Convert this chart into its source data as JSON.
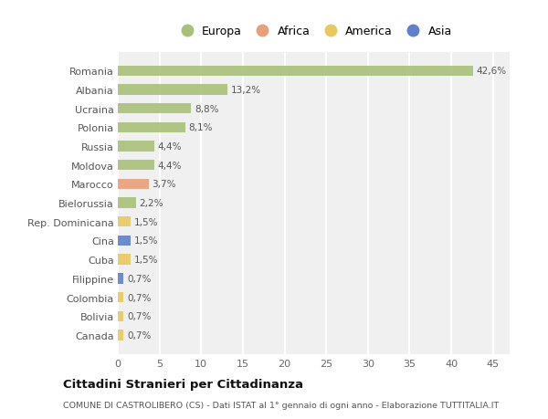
{
  "countries": [
    "Romania",
    "Albania",
    "Ucraina",
    "Polonia",
    "Russia",
    "Moldova",
    "Marocco",
    "Bielorussia",
    "Rep. Dominicana",
    "Cina",
    "Cuba",
    "Filippine",
    "Colombia",
    "Bolivia",
    "Canada"
  ],
  "values": [
    42.6,
    13.2,
    8.8,
    8.1,
    4.4,
    4.4,
    3.7,
    2.2,
    1.5,
    1.5,
    1.5,
    0.7,
    0.7,
    0.7,
    0.7
  ],
  "labels": [
    "42,6%",
    "13,2%",
    "8,8%",
    "8,1%",
    "4,4%",
    "4,4%",
    "3,7%",
    "2,2%",
    "1,5%",
    "1,5%",
    "1,5%",
    "0,7%",
    "0,7%",
    "0,7%",
    "0,7%"
  ],
  "continents": [
    "Europa",
    "Europa",
    "Europa",
    "Europa",
    "Europa",
    "Europa",
    "Africa",
    "Europa",
    "America",
    "Asia",
    "America",
    "Asia",
    "America",
    "America",
    "America"
  ],
  "colors": {
    "Europa": "#a8c07a",
    "Africa": "#e8a07a",
    "America": "#e8c860",
    "Asia": "#6080c8"
  },
  "legend_order": [
    "Europa",
    "Africa",
    "America",
    "Asia"
  ],
  "title": "Cittadini Stranieri per Cittadinanza",
  "subtitle": "COMUNE DI CASTROLIBERO (CS) - Dati ISTAT al 1° gennaio di ogni anno - Elaborazione TUTTITALIA.IT",
  "xlim": [
    0,
    47
  ],
  "xticks": [
    0,
    5,
    10,
    15,
    20,
    25,
    30,
    35,
    40,
    45
  ],
  "bg_color": "#ffffff",
  "plot_bg_color": "#f0f0f0",
  "grid_color": "#ffffff"
}
